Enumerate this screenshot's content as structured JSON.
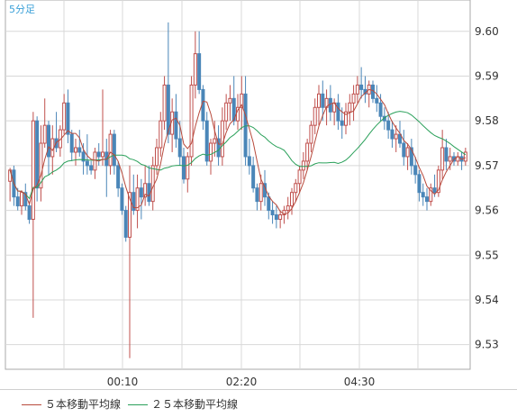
{
  "timeframe_label": "5分足",
  "legend": [
    {
      "label": "５本移動平均線",
      "color": "#b84a3c"
    },
    {
      "label": "２５本移動平均線",
      "color": "#2aa05a"
    }
  ],
  "colors": {
    "up": "#c0504d",
    "down": "#4a86b8",
    "ma5": "#b84a3c",
    "ma25": "#2aa05a",
    "grid": "#d8d8d8",
    "border": "#aaaaaa"
  },
  "chart_data": {
    "type": "candlestick",
    "x_ticks": [
      "00:10",
      "02:20",
      "04:30"
    ],
    "y_ticks": [
      "9.60",
      "9.59",
      "9.58",
      "9.57",
      "9.56",
      "9.55",
      "9.54",
      "9.53"
    ],
    "ylim": [
      9.5245,
      9.607
    ],
    "grid": true,
    "candles": [
      [
        9.5665,
        9.5695,
        9.562,
        9.569
      ],
      [
        9.569,
        9.57,
        9.561,
        9.563
      ],
      [
        9.563,
        9.565,
        9.56,
        9.561
      ],
      [
        9.561,
        9.5645,
        9.559,
        9.564
      ],
      [
        9.564,
        9.566,
        9.56,
        9.561
      ],
      [
        9.561,
        9.562,
        9.557,
        9.558
      ],
      [
        9.558,
        9.582,
        9.536,
        9.58
      ],
      [
        9.58,
        9.581,
        9.562,
        9.565
      ],
      [
        9.565,
        9.579,
        9.562,
        9.575
      ],
      [
        9.575,
        9.585,
        9.574,
        9.579
      ],
      [
        9.579,
        9.58,
        9.568,
        9.572
      ],
      [
        9.572,
        9.579,
        9.568,
        9.576
      ],
      [
        9.576,
        9.582,
        9.573,
        9.574
      ],
      [
        9.574,
        9.579,
        9.572,
        9.578
      ],
      [
        9.578,
        9.586,
        9.577,
        9.584
      ],
      [
        9.584,
        9.587,
        9.575,
        9.577
      ],
      [
        9.577,
        9.578,
        9.571,
        9.573
      ],
      [
        9.573,
        9.576,
        9.57,
        9.574
      ],
      [
        9.574,
        9.578,
        9.572,
        9.573
      ],
      [
        9.573,
        9.575,
        9.568,
        9.571
      ],
      [
        9.571,
        9.577,
        9.568,
        9.57
      ],
      [
        9.57,
        9.571,
        9.568,
        9.569
      ],
      [
        9.569,
        9.574,
        9.567,
        9.573
      ],
      [
        9.573,
        9.575,
        9.57,
        9.572
      ],
      [
        9.572,
        9.587,
        9.57,
        9.573
      ],
      [
        9.573,
        9.576,
        9.563,
        9.57
      ],
      [
        9.57,
        9.578,
        9.568,
        9.577
      ],
      [
        9.577,
        9.578,
        9.568,
        9.57
      ],
      [
        9.57,
        9.571,
        9.563,
        9.565
      ],
      [
        9.565,
        9.566,
        9.559,
        9.56
      ],
      [
        9.56,
        9.561,
        9.553,
        9.554
      ],
      [
        9.554,
        9.57,
        9.527,
        9.564
      ],
      [
        9.564,
        9.568,
        9.559,
        9.56
      ],
      [
        9.56,
        9.568,
        9.556,
        9.565
      ],
      [
        9.565,
        9.567,
        9.558,
        9.563
      ],
      [
        9.563,
        9.57,
        9.561,
        9.566
      ],
      [
        9.566,
        9.57,
        9.561,
        9.562
      ],
      [
        9.562,
        9.572,
        9.56,
        9.57
      ],
      [
        9.57,
        9.576,
        9.568,
        9.574
      ],
      [
        9.574,
        9.582,
        9.572,
        9.58
      ],
      [
        9.58,
        9.59,
        9.578,
        9.588
      ],
      [
        9.588,
        9.602,
        9.575,
        9.577
      ],
      [
        9.577,
        9.585,
        9.573,
        9.582
      ],
      [
        9.582,
        9.586,
        9.574,
        9.576
      ],
      [
        9.576,
        9.58,
        9.57,
        9.572
      ],
      [
        9.572,
        9.574,
        9.566,
        9.567
      ],
      [
        9.567,
        9.573,
        9.564,
        9.572
      ],
      [
        9.572,
        9.59,
        9.57,
        9.588
      ],
      [
        9.588,
        9.6,
        9.585,
        9.595
      ],
      [
        9.595,
        9.6,
        9.586,
        9.587
      ],
      [
        9.587,
        9.588,
        9.578,
        9.58
      ],
      [
        9.58,
        9.582,
        9.57,
        9.571
      ],
      [
        9.571,
        9.576,
        9.568,
        9.575
      ],
      [
        9.575,
        9.58,
        9.572,
        9.576
      ],
      [
        9.576,
        9.579,
        9.57,
        9.572
      ],
      [
        9.572,
        9.583,
        9.57,
        9.58
      ],
      [
        9.58,
        9.586,
        9.578,
        9.584
      ],
      [
        9.584,
        9.588,
        9.58,
        9.585
      ],
      [
        9.585,
        9.59,
        9.579,
        9.58
      ],
      [
        9.58,
        9.586,
        9.578,
        9.583
      ],
      [
        9.583,
        9.59,
        9.578,
        9.586
      ],
      [
        9.586,
        9.59,
        9.57,
        9.572
      ],
      [
        9.572,
        9.576,
        9.568,
        9.57
      ],
      [
        9.57,
        9.572,
        9.564,
        9.565
      ],
      [
        9.565,
        9.566,
        9.56,
        9.562
      ],
      [
        9.562,
        9.568,
        9.56,
        9.566
      ],
      [
        9.566,
        9.569,
        9.561,
        9.563
      ],
      [
        9.563,
        9.564,
        9.558,
        9.56
      ],
      [
        9.56,
        9.562,
        9.557,
        9.559
      ],
      [
        9.559,
        9.561,
        9.556,
        9.558
      ],
      [
        9.558,
        9.56,
        9.556,
        9.559
      ],
      [
        9.559,
        9.561,
        9.557,
        9.56
      ],
      [
        9.56,
        9.563,
        9.558,
        9.561
      ],
      [
        9.561,
        9.565,
        9.559,
        9.564
      ],
      [
        9.564,
        9.567,
        9.562,
        9.566
      ],
      [
        9.566,
        9.57,
        9.564,
        9.569
      ],
      [
        9.569,
        9.573,
        9.567,
        9.571
      ],
      [
        9.571,
        9.576,
        9.569,
        9.575
      ],
      [
        9.575,
        9.58,
        9.573,
        9.579
      ],
      [
        9.579,
        9.585,
        9.577,
        9.583
      ],
      [
        9.583,
        9.588,
        9.579,
        9.586
      ],
      [
        9.586,
        9.589,
        9.58,
        9.583
      ],
      [
        9.583,
        9.587,
        9.579,
        9.585
      ],
      [
        9.585,
        9.588,
        9.58,
        9.582
      ],
      [
        9.582,
        9.585,
        9.579,
        9.584
      ],
      [
        9.584,
        9.586,
        9.578,
        9.58
      ],
      [
        9.58,
        9.583,
        9.576,
        9.579
      ],
      [
        9.579,
        9.584,
        9.577,
        9.582
      ],
      [
        9.582,
        9.586,
        9.579,
        9.584
      ],
      [
        9.584,
        9.588,
        9.58,
        9.586
      ],
      [
        9.586,
        9.59,
        9.584,
        9.588
      ],
      [
        9.588,
        9.592,
        9.585,
        9.587
      ],
      [
        9.587,
        9.59,
        9.584,
        9.586
      ],
      [
        9.586,
        9.589,
        9.583,
        9.588
      ],
      [
        9.588,
        9.589,
        9.584,
        9.585
      ],
      [
        9.585,
        9.588,
        9.582,
        9.584
      ],
      [
        9.584,
        9.586,
        9.58,
        9.581
      ],
      [
        9.581,
        9.583,
        9.578,
        9.58
      ],
      [
        9.58,
        9.582,
        9.576,
        9.578
      ],
      [
        9.578,
        9.58,
        9.574,
        9.576
      ],
      [
        9.576,
        9.579,
        9.573,
        9.577
      ],
      [
        9.577,
        9.58,
        9.574,
        9.575
      ],
      [
        9.575,
        9.578,
        9.57,
        9.572
      ],
      [
        9.572,
        9.575,
        9.569,
        9.574
      ],
      [
        9.574,
        9.576,
        9.568,
        9.57
      ],
      [
        9.57,
        9.572,
        9.566,
        9.568
      ],
      [
        9.568,
        9.569,
        9.562,
        9.564
      ],
      [
        9.564,
        9.566,
        9.561,
        9.563
      ],
      [
        9.563,
        9.565,
        9.56,
        9.562
      ],
      [
        9.562,
        9.566,
        9.561,
        9.565
      ],
      [
        9.565,
        9.568,
        9.563,
        9.564
      ],
      [
        9.564,
        9.57,
        9.563,
        9.569
      ],
      [
        9.569,
        9.578,
        9.567,
        9.574
      ],
      [
        9.574,
        9.576,
        9.569,
        9.571
      ],
      [
        9.571,
        9.574,
        9.569,
        9.572
      ],
      [
        9.572,
        9.573,
        9.57,
        9.571
      ],
      [
        9.571,
        9.573,
        9.57,
        9.572
      ],
      [
        9.572,
        9.573,
        9.569,
        9.571
      ],
      [
        9.571,
        9.574,
        9.57,
        9.573
      ]
    ]
  }
}
